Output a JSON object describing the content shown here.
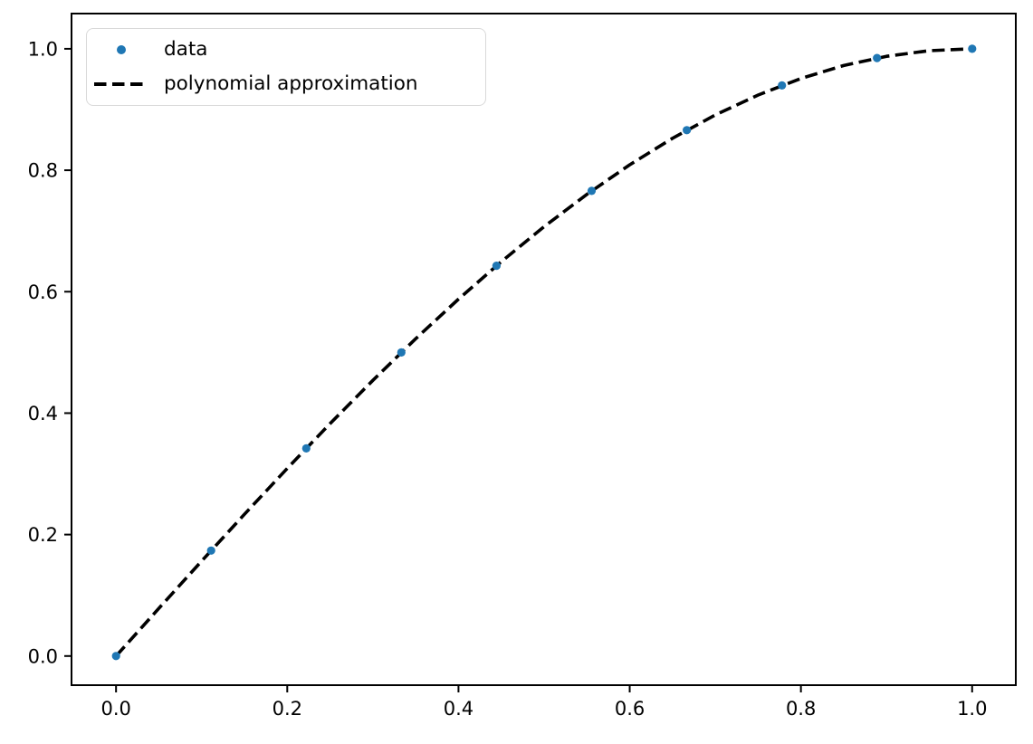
{
  "figure": {
    "background": "#ffffff"
  },
  "chart_data": {
    "type": "scatter",
    "title": "",
    "xlabel": "",
    "ylabel": "",
    "xlim": [
      -0.052,
      1.051
    ],
    "ylim": [
      -0.048,
      1.058
    ],
    "grid": false,
    "xticks": {
      "values": [
        0.0,
        0.2,
        0.4,
        0.6,
        0.8,
        1.0
      ],
      "labels": [
        "0.0",
        "0.2",
        "0.4",
        "0.6",
        "0.8",
        "1.0"
      ]
    },
    "yticks": {
      "values": [
        0.0,
        0.2,
        0.4,
        0.6,
        0.8,
        1.0
      ],
      "labels": [
        "0.0",
        "0.2",
        "0.4",
        "0.6",
        "0.8",
        "1.0"
      ]
    },
    "legend": {
      "position": "upper left",
      "entries": [
        {
          "label": "data",
          "type": "marker",
          "color": "#1f77b4"
        },
        {
          "label": "polynomial approximation",
          "type": "dashed-line",
          "color": "#000000"
        }
      ]
    },
    "series": [
      {
        "name": "data",
        "type": "scatter",
        "color": "#1f77b4",
        "marker_radius": 4.6,
        "x": [
          0.0,
          0.1111,
          0.2222,
          0.3333,
          0.4444,
          0.5556,
          0.6667,
          0.7778,
          0.8889,
          1.0
        ],
        "y": [
          0.0,
          0.1736,
          0.342,
          0.5,
          0.6428,
          0.766,
          0.866,
          0.9397,
          0.9848,
          1.0
        ]
      },
      {
        "name": "polynomial approximation",
        "type": "line",
        "style": "dashed",
        "color": "#000000",
        "line_width": 3.6,
        "dash": [
          14,
          6.5
        ],
        "x": [
          0.0,
          0.05,
          0.1,
          0.15,
          0.2,
          0.25,
          0.3,
          0.35,
          0.4,
          0.45,
          0.5,
          0.55,
          0.6,
          0.65,
          0.7,
          0.75,
          0.8,
          0.85,
          0.9,
          0.95,
          1.0
        ],
        "y": [
          0.0,
          0.0785,
          0.1564,
          0.2334,
          0.309,
          0.3827,
          0.454,
          0.5225,
          0.5878,
          0.6494,
          0.7071,
          0.7604,
          0.809,
          0.8526,
          0.891,
          0.9239,
          0.9511,
          0.9724,
          0.9877,
          0.9969,
          1.0
        ]
      }
    ],
    "axis_color": "#000000",
    "spine_width": 2,
    "tick_length": 8
  }
}
